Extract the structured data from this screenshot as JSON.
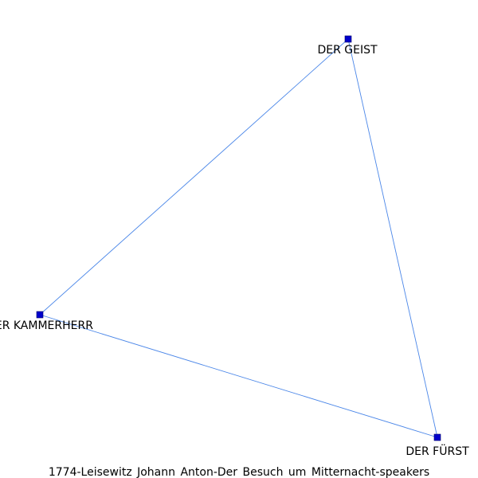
{
  "graph": {
    "title": "1774-Leisewitz_Johann_Anton-Der_Besuch_um_Mitternacht-speakers",
    "caption": "1774-Leisewitz  Johann  Anton-Der  Besuch  um  Mitternacht-speakers",
    "colors": {
      "node_fill": "#0000cc",
      "node_stroke": "#000066",
      "edge": "#4a86e8",
      "label": "#000000",
      "background": "#ffffff"
    },
    "nodes": [
      {
        "id": "geist",
        "label": "DER GEIST"
      },
      {
        "id": "kammerherr",
        "label": "DER KAMMERHERR"
      },
      {
        "id": "fuerst",
        "label": "DER FÜRST"
      }
    ],
    "edges": [
      {
        "source": "geist",
        "target": "kammerherr"
      },
      {
        "source": "geist",
        "target": "fuerst"
      },
      {
        "source": "kammerherr",
        "target": "fuerst"
      }
    ]
  }
}
